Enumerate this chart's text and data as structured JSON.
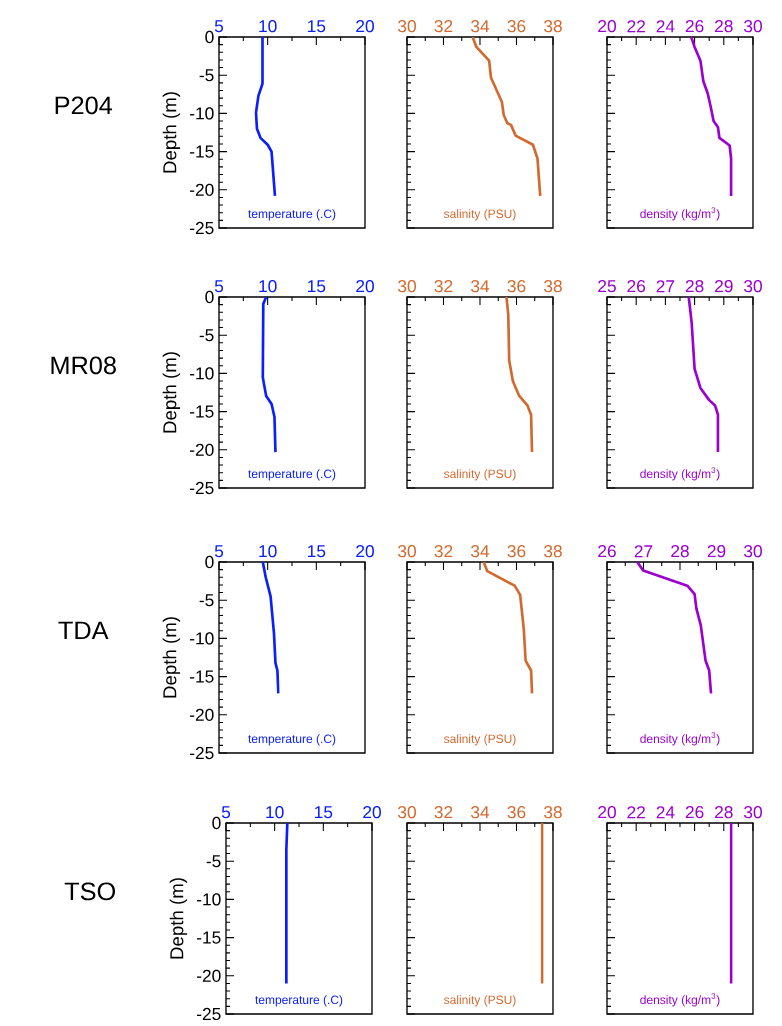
{
  "chart_data": [
    {
      "type": "line",
      "title": "P204",
      "ylabel": "Depth  (m)",
      "xlabel": "temperature (.C)",
      "xlim": [
        5,
        20
      ],
      "xticks": [
        5,
        10,
        15,
        20
      ],
      "ylim": [
        -25,
        0
      ],
      "yticks": [
        -25,
        -20,
        -15,
        -10,
        -5,
        0
      ],
      "series": [
        {
          "color": "#0a1eff",
          "x": [
            9.47,
            9.47,
            9.05,
            8.8,
            8.9,
            9.26,
            10.0,
            10.4,
            10.75
          ],
          "values": [
            0,
            -6.1,
            -7.7,
            -9.9,
            -12,
            -13.2,
            -14.1,
            -15,
            -20.8
          ]
        }
      ]
    },
    {
      "type": "line",
      "xlabel": "salinity (PSU)",
      "xlim": [
        30,
        38
      ],
      "xticks": [
        30,
        32,
        34,
        36,
        38
      ],
      "ylim": [
        -25,
        0
      ],
      "yticks": [
        -25,
        -20,
        -15,
        -10,
        -5,
        0
      ],
      "tick_labels": "x",
      "series": [
        {
          "color": "#d2692f",
          "x": [
            33.6,
            33.8,
            34.5,
            34.6,
            34.9,
            35.2,
            35.3,
            35.5,
            35.7,
            35.95,
            36.9,
            37.15,
            37.3
          ],
          "values": [
            0,
            -1.3,
            -3.1,
            -5.3,
            -6.9,
            -8.5,
            -10.2,
            -11.3,
            -11.5,
            -12.9,
            -14.1,
            -15.9,
            -20.8
          ]
        }
      ]
    },
    {
      "type": "line",
      "xlabel": "density (kg/m$^{3}$)",
      "xlim": [
        20,
        30
      ],
      "xticks": [
        20,
        22,
        24,
        26,
        28,
        30
      ],
      "ylim": [
        -25,
        0
      ],
      "yticks": [
        -25,
        -20,
        -15,
        -10,
        -5,
        0
      ],
      "tick_labels": "x",
      "series": [
        {
          "color": "#9b00d0",
          "x": [
            25.77,
            26.0,
            26.4,
            26.6,
            26.9,
            27.1,
            27.3,
            27.6,
            27.7,
            28.4,
            28.5,
            28.5
          ],
          "values": [
            0,
            -1.3,
            -3.1,
            -5.8,
            -7.4,
            -9.1,
            -11,
            -11.8,
            -13.2,
            -14.2,
            -15.9,
            -20.8
          ]
        }
      ]
    },
    {
      "type": "line",
      "title": "MR08",
      "ylabel": "Depth  (m)",
      "xlabel": "temperature (.C)",
      "xlim": [
        5,
        20
      ],
      "xticks": [
        5,
        10,
        15,
        20
      ],
      "ylim": [
        -25,
        0
      ],
      "yticks": [
        -25,
        -20,
        -15,
        -10,
        -5,
        0
      ],
      "series": [
        {
          "color": "#0a1eff",
          "x": [
            9.85,
            9.55,
            9.5,
            9.65,
            9.85,
            10.4,
            10.7,
            10.8
          ],
          "values": [
            0,
            -0.9,
            -10.5,
            -11.6,
            -12.95,
            -14,
            -15.7,
            -20.3
          ]
        }
      ]
    },
    {
      "type": "line",
      "xlabel": "salinity (PSU)",
      "xlim": [
        30,
        38
      ],
      "xticks": [
        30,
        32,
        34,
        36,
        38
      ],
      "ylim": [
        -25,
        0
      ],
      "yticks": [
        -25,
        -20,
        -15,
        -10,
        -5,
        0
      ],
      "tick_labels": "x",
      "series": [
        {
          "color": "#d2692f",
          "x": [
            35.45,
            35.55,
            35.6,
            35.8,
            36.15,
            36.6,
            36.8,
            36.85
          ],
          "values": [
            0,
            -2.3,
            -8.3,
            -11,
            -12.95,
            -14.2,
            -15.4,
            -20.3
          ]
        }
      ]
    },
    {
      "type": "line",
      "xlabel": "density (kg/m$^{3}$)",
      "xlim": [
        25,
        30
      ],
      "xticks": [
        25,
        26,
        27,
        28,
        29,
        30
      ],
      "ylim": [
        -25,
        0
      ],
      "yticks": [
        -25,
        -20,
        -15,
        -10,
        -5,
        0
      ],
      "tick_labels": "x",
      "series": [
        {
          "color": "#9b00d0",
          "x": [
            27.8,
            27.9,
            28.0,
            28.2,
            28.5,
            28.7,
            28.8,
            28.8
          ],
          "values": [
            0,
            -3.4,
            -9.4,
            -11.9,
            -13.5,
            -14.2,
            -15.4,
            -20.3
          ]
        }
      ]
    },
    {
      "type": "line",
      "title": "TDA",
      "ylabel": "Depth  (m)",
      "xlabel": "temperature (.C)",
      "xlim": [
        5,
        20
      ],
      "xticks": [
        5,
        10,
        15,
        20
      ],
      "ylim": [
        -25,
        0
      ],
      "yticks": [
        -25,
        -20,
        -15,
        -10,
        -5,
        0
      ],
      "series": [
        {
          "color": "#0a1eff",
          "x": [
            9.5,
            9.8,
            10.3,
            10.65,
            10.8,
            11.0,
            11.1
          ],
          "values": [
            0,
            -2,
            -4.5,
            -9.35,
            -13.2,
            -14.2,
            -17.2
          ]
        }
      ]
    },
    {
      "type": "line",
      "xlabel": "salinity (PSU)",
      "xlim": [
        30,
        38
      ],
      "xticks": [
        30,
        32,
        34,
        36,
        38
      ],
      "ylim": [
        -25,
        0
      ],
      "yticks": [
        -25,
        -20,
        -15,
        -10,
        -5,
        0
      ],
      "tick_labels": "x",
      "series": [
        {
          "color": "#d2692f",
          "x": [
            34.2,
            34.4,
            35.9,
            36.2,
            36.4,
            36.5,
            36.8,
            36.85
          ],
          "values": [
            0,
            -1.2,
            -3.1,
            -4.3,
            -8.8,
            -12.9,
            -14.2,
            -17.2
          ]
        }
      ]
    },
    {
      "type": "line",
      "xlabel": "density (kg/m$^{3}$)",
      "xlim": [
        26,
        30
      ],
      "xticks": [
        26,
        27,
        28,
        29,
        30
      ],
      "ylim": [
        -25,
        0
      ],
      "yticks": [
        -25,
        -20,
        -15,
        -10,
        -5,
        0
      ],
      "tick_labels": "x",
      "series": [
        {
          "color": "#9b00d0",
          "x": [
            26.83,
            26.99,
            28.2,
            28.4,
            28.45,
            28.57,
            28.7,
            28.8,
            28.85
          ],
          "values": [
            0,
            -1.1,
            -3.1,
            -4.2,
            -6.1,
            -8.3,
            -12.9,
            -14.2,
            -17.2
          ]
        }
      ]
    },
    {
      "type": "line",
      "title": "TSO",
      "ylabel": "Depth  (m)",
      "xlabel": "temperature (.C)",
      "xlim": [
        5,
        20
      ],
      "xticks": [
        5,
        10,
        15,
        20
      ],
      "ylim": [
        -25,
        0
      ],
      "yticks": [
        -25,
        -20,
        -15,
        -10,
        -5,
        0
      ],
      "series": [
        {
          "color": "#0a1eff",
          "x": [
            11.3,
            11.2,
            11.2
          ],
          "values": [
            0,
            -3.5,
            -21
          ]
        }
      ]
    },
    {
      "type": "line",
      "xlabel": "salinity (PSU)",
      "xlim": [
        30,
        38
      ],
      "xticks": [
        30,
        32,
        34,
        36,
        38
      ],
      "ylim": [
        -25,
        0
      ],
      "yticks": [
        -25,
        -20,
        -15,
        -10,
        -5,
        0
      ],
      "tick_labels": "x",
      "series": [
        {
          "color": "#d2692f",
          "x": [
            37.4,
            37.4
          ],
          "values": [
            0,
            -21
          ]
        }
      ]
    },
    {
      "type": "line",
      "xlabel": "density (kg/m$^{3}$)",
      "xlim": [
        20,
        30
      ],
      "xticks": [
        20,
        22,
        24,
        26,
        28,
        30
      ],
      "ylim": [
        -25,
        0
      ],
      "yticks": [
        -25,
        -20,
        -15,
        -10,
        -5,
        0
      ],
      "tick_labels": "x",
      "series": [
        {
          "color": "#9b00d0",
          "x": [
            28.5,
            28.5
          ],
          "values": [
            0,
            -21
          ]
        }
      ]
    }
  ]
}
